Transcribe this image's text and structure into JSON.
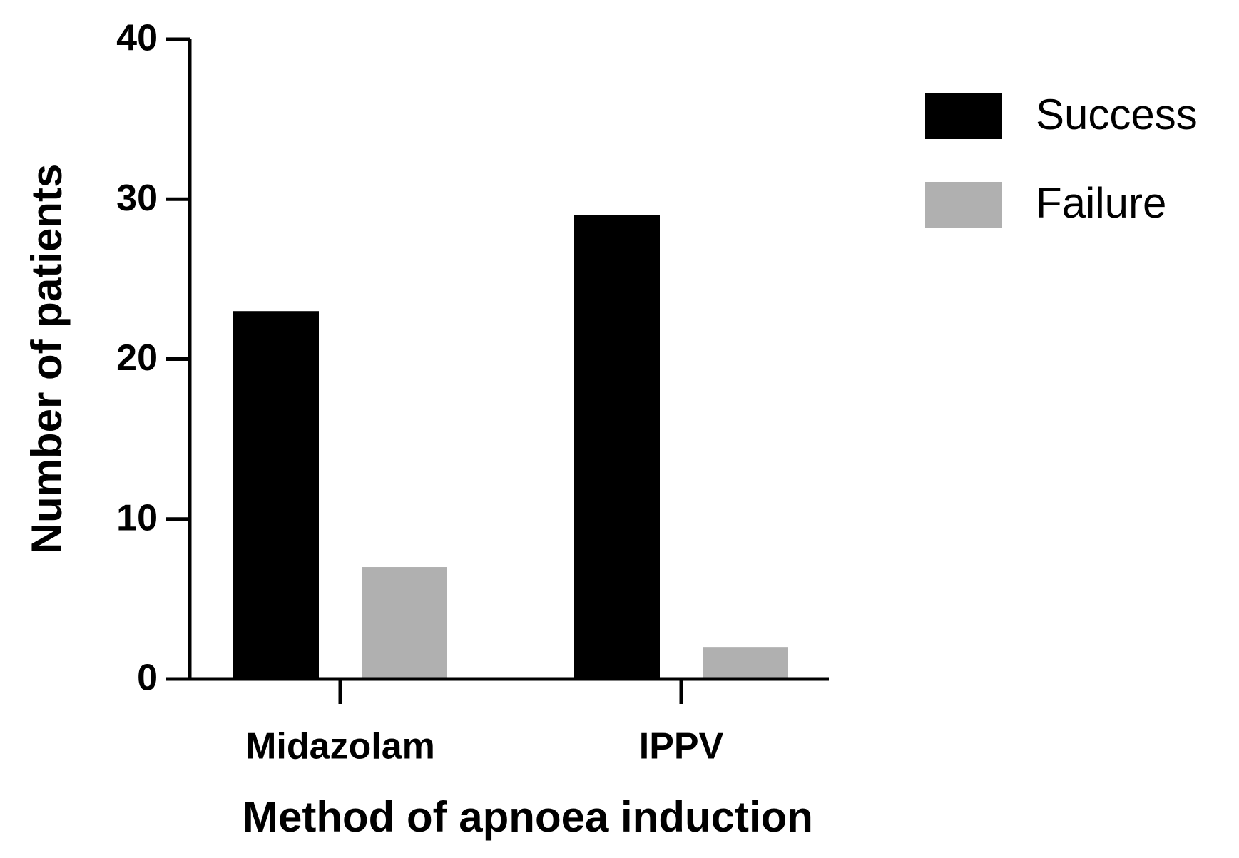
{
  "chart_data": {
    "type": "bar",
    "xlabel": "Method of apnoea induction",
    "ylabel": "Number of patients",
    "categories": [
      "Midazolam",
      "IPPV"
    ],
    "series": [
      {
        "name": "Success",
        "color": "#000000",
        "values": [
          23,
          29
        ]
      },
      {
        "name": "Failure",
        "color": "#b0b0b0",
        "values": [
          7,
          2
        ]
      }
    ],
    "ylim": [
      0,
      40
    ],
    "yticks": [
      0,
      10,
      20,
      30,
      40
    ],
    "legend": "right"
  }
}
